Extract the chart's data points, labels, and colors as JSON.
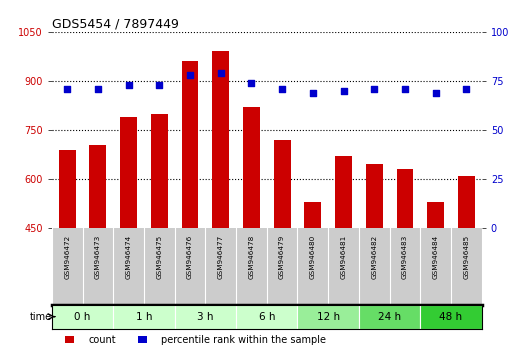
{
  "title": "GDS5454 / 7897449",
  "samples": [
    "GSM946472",
    "GSM946473",
    "GSM946474",
    "GSM946475",
    "GSM946476",
    "GSM946477",
    "GSM946478",
    "GSM946479",
    "GSM946480",
    "GSM946481",
    "GSM946482",
    "GSM946483",
    "GSM946484",
    "GSM946485"
  ],
  "counts": [
    690,
    705,
    790,
    800,
    960,
    990,
    820,
    720,
    530,
    670,
    645,
    630,
    530,
    610
  ],
  "percentiles": [
    71,
    71,
    73,
    73,
    78,
    79,
    74,
    71,
    69,
    70,
    71,
    71,
    69,
    71
  ],
  "ylim_left": [
    450,
    1050
  ],
  "ylim_right": [
    0,
    100
  ],
  "yticks_left": [
    450,
    600,
    750,
    900,
    1050
  ],
  "yticks_right": [
    0,
    25,
    50,
    75,
    100
  ],
  "bar_color": "#cc0000",
  "dot_color": "#0000cc",
  "grid_color": "#000000",
  "time_groups": [
    {
      "label": "0 h",
      "start": 0,
      "end": 2,
      "color": "#ccffcc"
    },
    {
      "label": "1 h",
      "start": 2,
      "end": 4,
      "color": "#ccffcc"
    },
    {
      "label": "3 h",
      "start": 4,
      "end": 6,
      "color": "#ccffcc"
    },
    {
      "label": "6 h",
      "start": 6,
      "end": 8,
      "color": "#ccffcc"
    },
    {
      "label": "12 h",
      "start": 8,
      "end": 10,
      "color": "#99ee99"
    },
    {
      "label": "24 h",
      "start": 10,
      "end": 12,
      "color": "#66dd66"
    },
    {
      "label": "48 h",
      "start": 12,
      "end": 14,
      "color": "#33cc33"
    }
  ],
  "bg_color": "#ffffff",
  "sample_bg": "#cccccc"
}
